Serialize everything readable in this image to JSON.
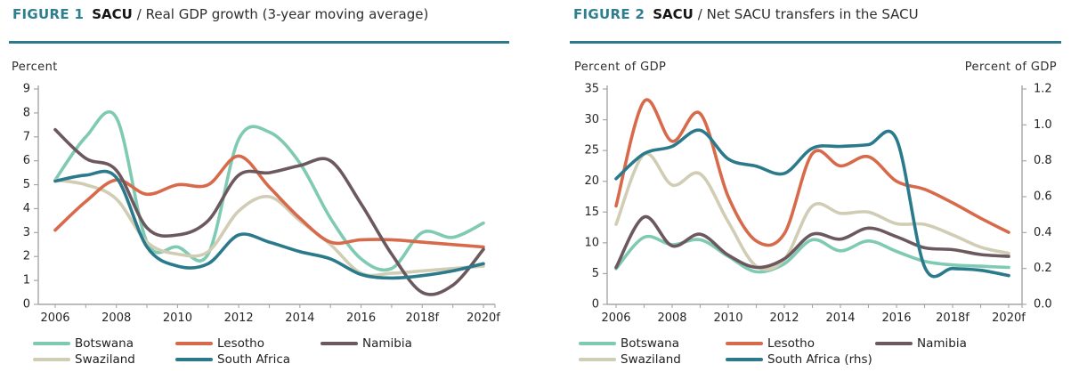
{
  "page": {
    "background": "#ffffff"
  },
  "figure1": {
    "label": "FIGURE 1",
    "region": "SACU",
    "title": "/ Real GDP growth (3-year moving average)"
  },
  "figure2": {
    "label": "FIGURE 2",
    "region": "SACU",
    "title": "/ Net SACU transfers in the SACU"
  },
  "colors": {
    "heading_teal": "#2e7e8e",
    "divider_teal": "#2b7a8c",
    "axis_gray": "#a6a6a6",
    "text_dark": "#262626"
  },
  "chart_data": [
    {
      "type": "line",
      "title": "SACU / Real GDP growth (3-year moving average)",
      "ylabel": "Percent",
      "ylim": [
        0,
        9
      ],
      "y_tick_step": 1,
      "grid": false,
      "legend_position": "bottom",
      "x": [
        2006,
        2007,
        2008,
        2009,
        2010,
        2011,
        2012,
        2013,
        2014,
        2015,
        2016,
        2017,
        2018,
        2019,
        2020
      ],
      "x_tick_years": [
        2006,
        2008,
        2010,
        2012,
        2014,
        2016,
        2018,
        2020
      ],
      "x_tick_labels": [
        "2006",
        "2008",
        "2010",
        "2012",
        "2014",
        "2016",
        "2018f",
        "2020f"
      ],
      "series": [
        {
          "name": "Botswana",
          "color": "#7ecab3",
          "axis": "left",
          "values": [
            5.2,
            7.0,
            7.8,
            2.6,
            2.4,
            2.1,
            6.9,
            7.2,
            5.9,
            3.6,
            1.9,
            1.5,
            3.0,
            2.8,
            3.4
          ]
        },
        {
          "name": "Lesotho",
          "color": "#d86a4c",
          "axis": "left",
          "values": [
            3.1,
            4.3,
            5.2,
            4.6,
            5.0,
            5.0,
            6.2,
            4.9,
            3.6,
            2.6,
            2.7,
            2.7,
            2.6,
            2.5,
            2.4
          ]
        },
        {
          "name": "Namibia",
          "color": "#6b595e",
          "axis": "left",
          "values": [
            7.3,
            6.1,
            5.6,
            3.2,
            2.9,
            3.5,
            5.4,
            5.5,
            5.8,
            6.0,
            4.2,
            2.1,
            0.5,
            0.8,
            2.3
          ]
        },
        {
          "name": "Swaziland",
          "color": "#d0cdb4",
          "axis": "left",
          "values": [
            5.2,
            5.0,
            4.4,
            2.6,
            2.1,
            2.2,
            3.9,
            4.5,
            3.5,
            2.5,
            1.3,
            1.3,
            1.4,
            1.5,
            1.6
          ]
        },
        {
          "name": "South Africa",
          "color": "#2b7a8c",
          "axis": "left",
          "values": [
            5.15,
            5.4,
            5.3,
            2.4,
            1.6,
            1.7,
            2.9,
            2.6,
            2.2,
            1.9,
            1.25,
            1.1,
            1.2,
            1.4,
            1.7
          ]
        }
      ]
    },
    {
      "type": "line",
      "title": "SACU / Net SACU transfers in the SACU",
      "ylabel_left": "Percent of GDP",
      "ylabel_right": "Percent of GDP",
      "ylim_left": [
        0,
        35
      ],
      "ylim_right": [
        0,
        1.2
      ],
      "y_tick_step_left": 5,
      "y_tick_step_right": 0.2,
      "grid": false,
      "legend_position": "bottom",
      "x": [
        2006,
        2007,
        2008,
        2009,
        2010,
        2011,
        2012,
        2013,
        2014,
        2015,
        2016,
        2017,
        2018,
        2019,
        2020
      ],
      "x_tick_years": [
        2006,
        2008,
        2010,
        2012,
        2014,
        2016,
        2018,
        2020
      ],
      "x_tick_labels": [
        "2006",
        "2008",
        "2010",
        "2012",
        "2014",
        "2016",
        "2018f",
        "2020f"
      ],
      "series": [
        {
          "name": "Botswana",
          "color": "#7ecab3",
          "axis": "left",
          "values": [
            5.8,
            10.9,
            9.7,
            10.5,
            7.8,
            5.3,
            6.6,
            10.5,
            8.7,
            10.3,
            8.6,
            7.0,
            6.4,
            6.2,
            6.0
          ]
        },
        {
          "name": "Lesotho",
          "color": "#d86a4c",
          "axis": "left",
          "values": [
            16.0,
            33.0,
            26.5,
            31.0,
            17.5,
            10.3,
            11.5,
            24.5,
            22.5,
            24.0,
            20.0,
            18.7,
            16.5,
            14.0,
            11.7
          ]
        },
        {
          "name": "Namibia",
          "color": "#6b595e",
          "axis": "left",
          "values": [
            6.0,
            14.2,
            9.5,
            11.4,
            8.0,
            6.0,
            7.4,
            11.4,
            10.6,
            12.4,
            11.0,
            9.2,
            8.9,
            8.1,
            7.8
          ]
        },
        {
          "name": "Swaziland",
          "color": "#d0cdb4",
          "axis": "left",
          "values": [
            13.0,
            24.4,
            19.4,
            21.2,
            13.4,
            6.2,
            7.3,
            16.0,
            14.8,
            15.0,
            13.1,
            13.0,
            11.3,
            9.3,
            8.3
          ]
        },
        {
          "name": "South Africa (rhs)",
          "color": "#2b7a8c",
          "axis": "right",
          "values": [
            0.7,
            0.84,
            0.88,
            0.97,
            0.81,
            0.77,
            0.73,
            0.87,
            0.88,
            0.89,
            0.92,
            0.21,
            0.2,
            0.19,
            0.16
          ]
        }
      ]
    }
  ]
}
